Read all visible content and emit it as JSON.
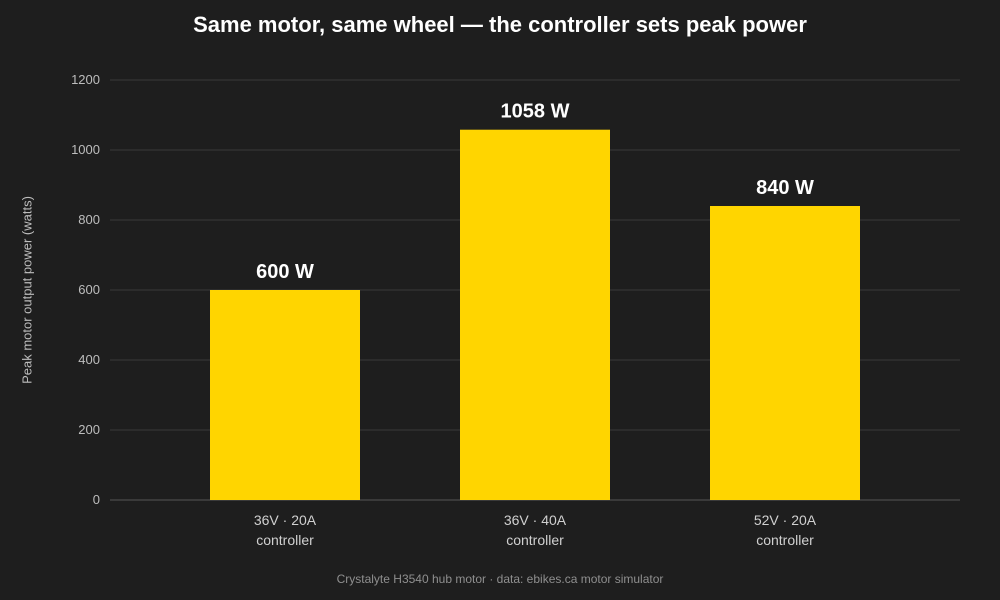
{
  "chart_data": {
    "type": "bar",
    "title": "Same motor, same wheel — the controller sets peak power",
    "ylabel": "Peak motor output power (watts)",
    "xlabel": "",
    "categories": [
      [
        "36V · 20A",
        "controller"
      ],
      [
        "36V · 40A",
        "controller"
      ],
      [
        "52V · 20A",
        "controller"
      ]
    ],
    "values": [
      600,
      1058,
      840
    ],
    "value_labels": [
      "600 W",
      "1058 W",
      "840 W"
    ],
    "ylim": [
      0,
      1200
    ],
    "yticks": [
      0,
      200,
      400,
      600,
      800,
      1000,
      1200
    ],
    "grid": true,
    "bar_color": "#ffd500",
    "grid_color": "#3a3a3a",
    "source_note": "Crystalyte H3540 hub motor · data: ebikes.ca motor simulator"
  }
}
